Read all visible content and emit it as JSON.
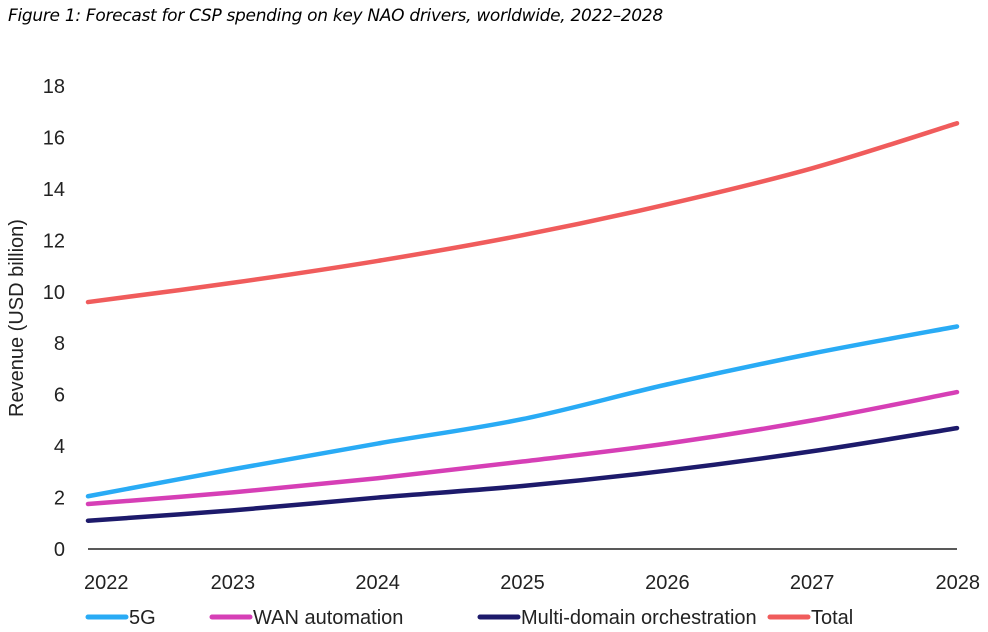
{
  "title": "Figure 1: Forecast for CSP spending on key NAO drivers, worldwide, 2022–2028",
  "chart_data": {
    "type": "line",
    "title": "Figure 1: Forecast for CSP spending on key NAO drivers, worldwide, 2022–2028",
    "xlabel": "",
    "ylabel": "Revenue (USD billion)",
    "x": [
      "2022",
      "2023",
      "2024",
      "2025",
      "2026",
      "2027",
      "2028"
    ],
    "ylim": [
      0,
      18
    ],
    "yticks": [
      "0",
      "2",
      "4",
      "6",
      "8",
      "10",
      "12",
      "14",
      "16",
      "18"
    ],
    "grid": false,
    "legend_position": "bottom",
    "series": [
      {
        "name": "5G",
        "color": "#29abf5",
        "values": [
          2.05,
          3.1,
          4.1,
          5.05,
          6.4,
          7.6,
          8.65
        ]
      },
      {
        "name": "WAN automation",
        "color": "#d63fb6",
        "values": [
          1.75,
          2.2,
          2.75,
          3.4,
          4.1,
          5.0,
          6.1
        ]
      },
      {
        "name": "Multi-domain orchestration",
        "color": "#1d1a6b",
        "values": [
          1.1,
          1.5,
          2.0,
          2.45,
          3.05,
          3.8,
          4.7
        ]
      },
      {
        "name": "Total",
        "color": "#f05c5c",
        "values": [
          9.6,
          10.35,
          11.2,
          12.2,
          13.4,
          14.8,
          16.55
        ]
      }
    ]
  }
}
